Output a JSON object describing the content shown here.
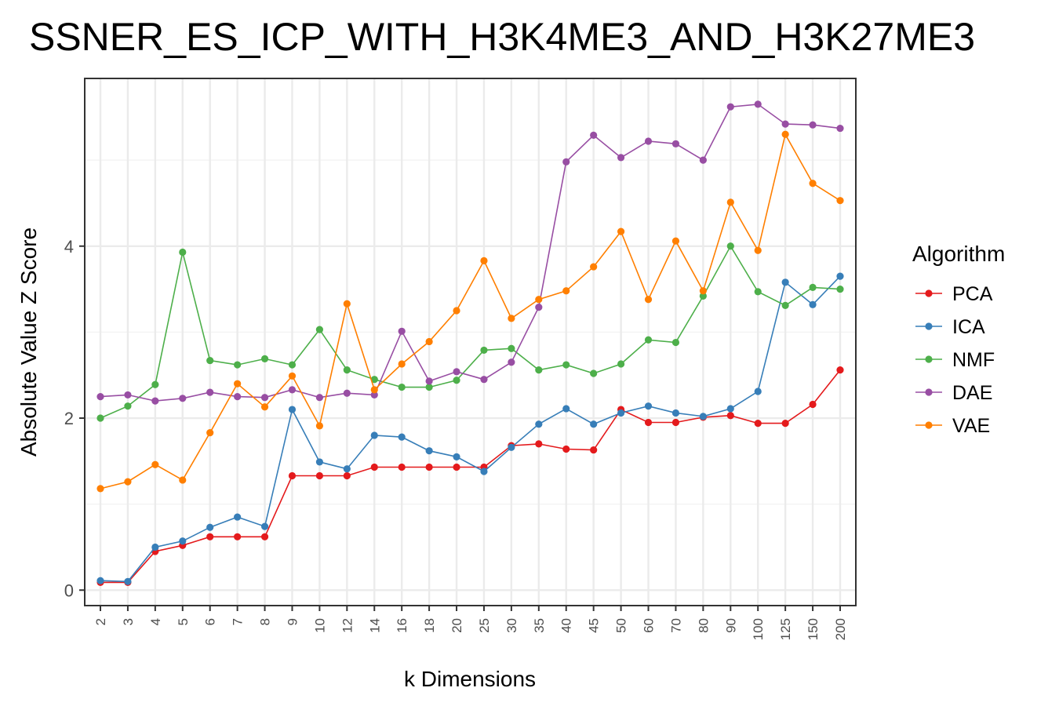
{
  "chart_data": {
    "type": "line",
    "title": "SSNER_ES_ICP_WITH_H3K4ME3_AND_H3K27ME3",
    "xlabel": "k Dimensions",
    "ylabel": "Absolute Value Z Score",
    "ylim": [
      -0.18,
      5.95
    ],
    "yticks": [
      "0",
      "2",
      "4"
    ],
    "grid": true,
    "legend_title": "Algorithm",
    "legend_position": "right",
    "categories": [
      "2",
      "3",
      "4",
      "5",
      "6",
      "7",
      "8",
      "9",
      "10",
      "12",
      "14",
      "16",
      "18",
      "20",
      "25",
      "30",
      "35",
      "40",
      "45",
      "50",
      "60",
      "70",
      "80",
      "90",
      "100",
      "125",
      "150",
      "200"
    ],
    "series": [
      {
        "name": "PCA",
        "color": "#e41a1c",
        "values": [
          0.09,
          0.09,
          0.45,
          0.52,
          0.62,
          0.62,
          0.62,
          1.33,
          1.33,
          1.33,
          1.43,
          1.43,
          1.43,
          1.43,
          1.43,
          1.68,
          1.7,
          1.64,
          1.63,
          2.1,
          1.95,
          1.95,
          2.01,
          2.03,
          1.94,
          1.94,
          2.16,
          2.56
        ]
      },
      {
        "name": "ICA",
        "color": "#377eb8",
        "values": [
          0.11,
          0.1,
          0.5,
          0.57,
          0.73,
          0.85,
          0.74,
          2.1,
          1.49,
          1.41,
          1.8,
          1.78,
          1.62,
          1.55,
          1.38,
          1.66,
          1.93,
          2.11,
          1.93,
          2.06,
          2.14,
          2.06,
          2.02,
          2.11,
          2.31,
          3.58,
          3.32,
          3.65
        ]
      },
      {
        "name": "NMF",
        "color": "#4daf4a",
        "values": [
          2.0,
          2.14,
          2.39,
          3.93,
          2.67,
          2.62,
          2.69,
          2.62,
          3.03,
          2.56,
          2.45,
          2.36,
          2.36,
          2.44,
          2.79,
          2.81,
          2.56,
          2.62,
          2.52,
          2.63,
          2.91,
          2.88,
          3.42,
          4.0,
          3.47,
          3.31,
          3.52,
          3.5
        ]
      },
      {
        "name": "DAE",
        "color": "#984ea3",
        "values": [
          2.25,
          2.27,
          2.2,
          2.23,
          2.3,
          2.25,
          2.24,
          2.33,
          2.24,
          2.29,
          2.27,
          3.01,
          2.43,
          2.54,
          2.45,
          2.65,
          3.29,
          4.98,
          5.29,
          5.03,
          5.22,
          5.19,
          5.0,
          5.62,
          5.65,
          5.42,
          5.41,
          5.37
        ]
      },
      {
        "name": "VAE",
        "color": "#ff7f00",
        "values": [
          1.18,
          1.26,
          1.46,
          1.28,
          1.83,
          2.4,
          2.13,
          2.49,
          1.91,
          3.33,
          2.33,
          2.63,
          2.89,
          3.25,
          3.83,
          3.16,
          3.38,
          3.48,
          3.76,
          4.17,
          3.38,
          4.06,
          3.48,
          4.51,
          3.95,
          5.3,
          4.73,
          4.53
        ]
      }
    ]
  }
}
